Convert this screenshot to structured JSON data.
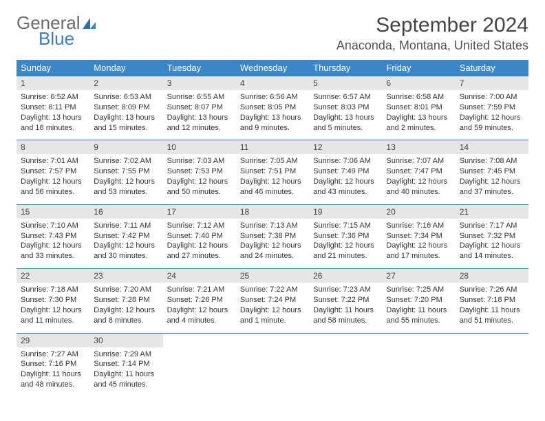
{
  "brand": {
    "word1": "General",
    "word2": "Blue"
  },
  "title": "September 2024",
  "location": "Anaconda, Montana, United States",
  "colors": {
    "header_bg": "#3b86c6",
    "header_text": "#ffffff",
    "daynum_bg": "#e6e6e6",
    "border": "#3b7fa8",
    "text": "#333333",
    "brand_gray": "#6a6a6a",
    "brand_blue": "#3b7fc4"
  },
  "day_names": [
    "Sunday",
    "Monday",
    "Tuesday",
    "Wednesday",
    "Thursday",
    "Friday",
    "Saturday"
  ],
  "weeks": [
    [
      {
        "n": "1",
        "sr": "6:52 AM",
        "ss": "8:11 PM",
        "dl": "13 hours and 18 minutes."
      },
      {
        "n": "2",
        "sr": "6:53 AM",
        "ss": "8:09 PM",
        "dl": "13 hours and 15 minutes."
      },
      {
        "n": "3",
        "sr": "6:55 AM",
        "ss": "8:07 PM",
        "dl": "13 hours and 12 minutes."
      },
      {
        "n": "4",
        "sr": "6:56 AM",
        "ss": "8:05 PM",
        "dl": "13 hours and 9 minutes."
      },
      {
        "n": "5",
        "sr": "6:57 AM",
        "ss": "8:03 PM",
        "dl": "13 hours and 5 minutes."
      },
      {
        "n": "6",
        "sr": "6:58 AM",
        "ss": "8:01 PM",
        "dl": "13 hours and 2 minutes."
      },
      {
        "n": "7",
        "sr": "7:00 AM",
        "ss": "7:59 PM",
        "dl": "12 hours and 59 minutes."
      }
    ],
    [
      {
        "n": "8",
        "sr": "7:01 AM",
        "ss": "7:57 PM",
        "dl": "12 hours and 56 minutes."
      },
      {
        "n": "9",
        "sr": "7:02 AM",
        "ss": "7:55 PM",
        "dl": "12 hours and 53 minutes."
      },
      {
        "n": "10",
        "sr": "7:03 AM",
        "ss": "7:53 PM",
        "dl": "12 hours and 50 minutes."
      },
      {
        "n": "11",
        "sr": "7:05 AM",
        "ss": "7:51 PM",
        "dl": "12 hours and 46 minutes."
      },
      {
        "n": "12",
        "sr": "7:06 AM",
        "ss": "7:49 PM",
        "dl": "12 hours and 43 minutes."
      },
      {
        "n": "13",
        "sr": "7:07 AM",
        "ss": "7:47 PM",
        "dl": "12 hours and 40 minutes."
      },
      {
        "n": "14",
        "sr": "7:08 AM",
        "ss": "7:45 PM",
        "dl": "12 hours and 37 minutes."
      }
    ],
    [
      {
        "n": "15",
        "sr": "7:10 AM",
        "ss": "7:43 PM",
        "dl": "12 hours and 33 minutes."
      },
      {
        "n": "16",
        "sr": "7:11 AM",
        "ss": "7:42 PM",
        "dl": "12 hours and 30 minutes."
      },
      {
        "n": "17",
        "sr": "7:12 AM",
        "ss": "7:40 PM",
        "dl": "12 hours and 27 minutes."
      },
      {
        "n": "18",
        "sr": "7:13 AM",
        "ss": "7:38 PM",
        "dl": "12 hours and 24 minutes."
      },
      {
        "n": "19",
        "sr": "7:15 AM",
        "ss": "7:36 PM",
        "dl": "12 hours and 21 minutes."
      },
      {
        "n": "20",
        "sr": "7:16 AM",
        "ss": "7:34 PM",
        "dl": "12 hours and 17 minutes."
      },
      {
        "n": "21",
        "sr": "7:17 AM",
        "ss": "7:32 PM",
        "dl": "12 hours and 14 minutes."
      }
    ],
    [
      {
        "n": "22",
        "sr": "7:18 AM",
        "ss": "7:30 PM",
        "dl": "12 hours and 11 minutes."
      },
      {
        "n": "23",
        "sr": "7:20 AM",
        "ss": "7:28 PM",
        "dl": "12 hours and 8 minutes."
      },
      {
        "n": "24",
        "sr": "7:21 AM",
        "ss": "7:26 PM",
        "dl": "12 hours and 4 minutes."
      },
      {
        "n": "25",
        "sr": "7:22 AM",
        "ss": "7:24 PM",
        "dl": "12 hours and 1 minute."
      },
      {
        "n": "26",
        "sr": "7:23 AM",
        "ss": "7:22 PM",
        "dl": "11 hours and 58 minutes."
      },
      {
        "n": "27",
        "sr": "7:25 AM",
        "ss": "7:20 PM",
        "dl": "11 hours and 55 minutes."
      },
      {
        "n": "28",
        "sr": "7:26 AM",
        "ss": "7:18 PM",
        "dl": "11 hours and 51 minutes."
      }
    ],
    [
      {
        "n": "29",
        "sr": "7:27 AM",
        "ss": "7:16 PM",
        "dl": "11 hours and 48 minutes."
      },
      {
        "n": "30",
        "sr": "7:29 AM",
        "ss": "7:14 PM",
        "dl": "11 hours and 45 minutes."
      },
      null,
      null,
      null,
      null,
      null
    ]
  ],
  "labels": {
    "sunrise": "Sunrise: ",
    "sunset": "Sunset: ",
    "daylight": "Daylight: "
  }
}
